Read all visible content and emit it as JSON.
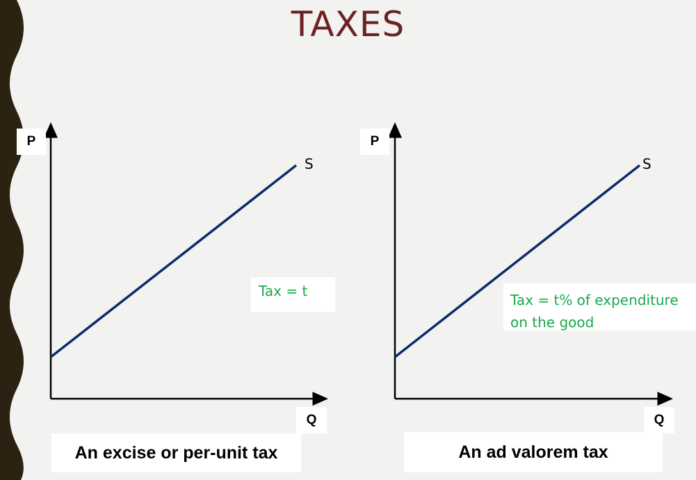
{
  "title": "TAXES",
  "colors": {
    "title": "#6b2222",
    "supply_line": "#0d2a6b",
    "note_text": "#1aa84d",
    "border_wave": "#2b2212",
    "background": "#f2f2f0"
  },
  "panels": [
    {
      "y_axis_label": "P",
      "x_axis_label": "Q",
      "curve_label": "S",
      "note": "Tax = t",
      "caption": "An excise or per-unit tax"
    },
    {
      "y_axis_label": "P",
      "x_axis_label": "Q",
      "curve_label": "S",
      "note_lines": [
        "Tax = t% of expenditure",
        "on the good"
      ],
      "caption": "An ad valorem tax"
    }
  ]
}
